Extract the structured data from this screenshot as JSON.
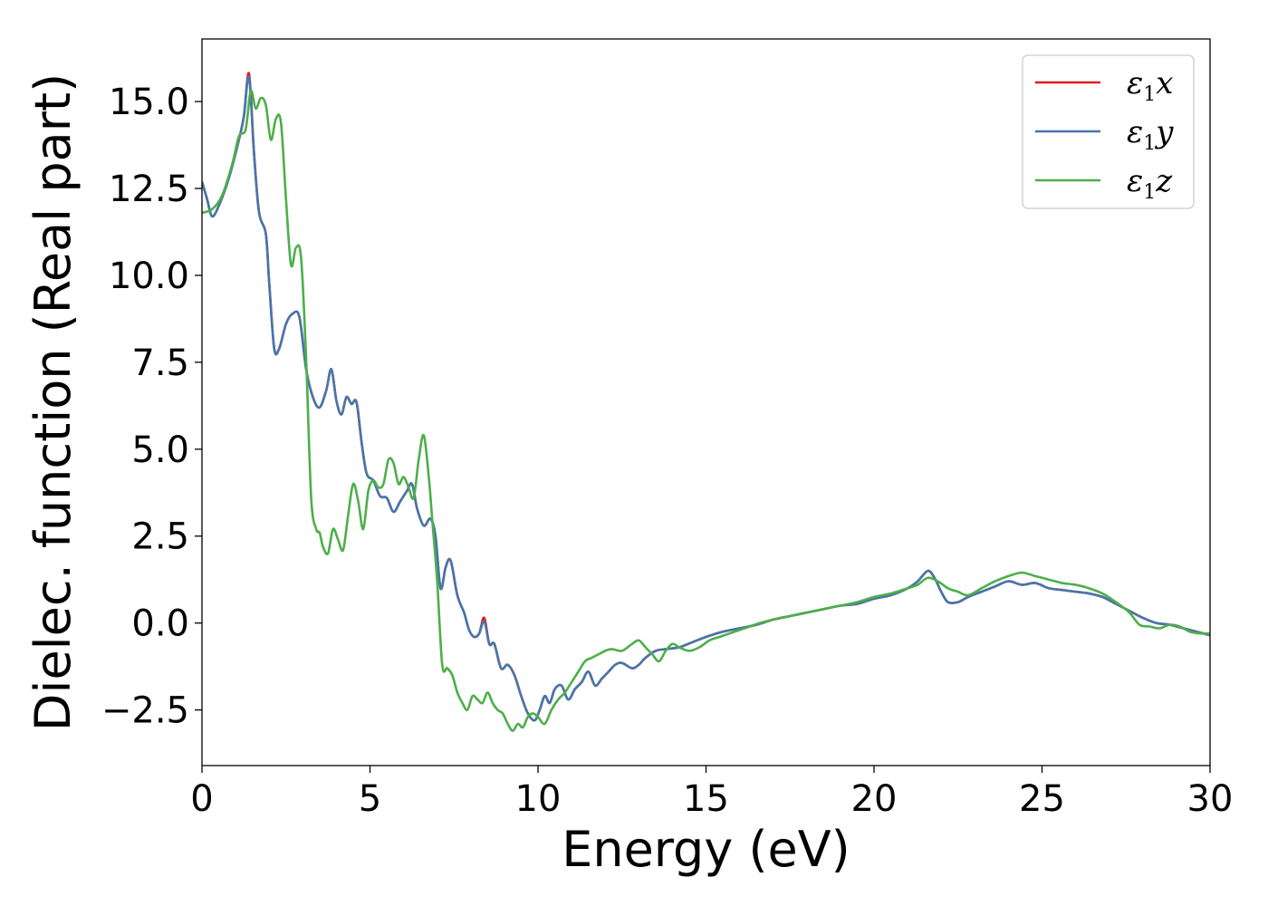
{
  "chart_data": {
    "type": "line",
    "title": "",
    "xlabel": "Energy (eV)",
    "ylabel": "Dielec. function (Real part)",
    "xlim": [
      0,
      30
    ],
    "ylim": [
      -4.1,
      16.8
    ],
    "x_ticks": [
      0,
      5,
      10,
      15,
      20,
      25,
      30
    ],
    "x_tick_labels": [
      "0",
      "5",
      "10",
      "15",
      "20",
      "25",
      "30"
    ],
    "y_ticks": [
      -2.5,
      0.0,
      2.5,
      5.0,
      7.5,
      10.0,
      12.5,
      15.0
    ],
    "y_tick_labels": [
      "−2.5",
      "0.0",
      "2.5",
      "5.0",
      "7.5",
      "10.0",
      "12.5",
      "15.0"
    ],
    "grid": false,
    "legend_position": "top-right",
    "series": [
      {
        "name": "ε",
        "sub": "1",
        "suffix": "x",
        "color": "#e41a1c",
        "x": [
          0,
          0.15,
          0.3,
          0.5,
          0.8,
          1.1,
          1.25,
          1.4,
          1.55,
          1.7,
          1.9,
          2.0,
          2.15,
          2.3,
          2.5,
          2.7,
          2.9,
          3.1,
          3.3,
          3.5,
          3.7,
          3.85,
          4.0,
          4.15,
          4.3,
          4.45,
          4.6,
          4.75,
          4.9,
          5.1,
          5.3,
          5.5,
          5.7,
          5.9,
          6.1,
          6.25,
          6.4,
          6.6,
          6.8,
          6.95,
          7.1,
          7.25,
          7.4,
          7.6,
          7.8,
          7.95,
          8.1,
          8.25,
          8.4,
          8.55,
          8.7,
          8.9,
          9.1,
          9.3,
          9.5,
          9.7,
          9.9,
          10.05,
          10.2,
          10.35,
          10.5,
          10.7,
          10.9,
          11.1,
          11.3,
          11.5,
          11.7,
          11.9,
          12.1,
          12.3,
          12.5,
          12.8,
          13.0,
          13.2,
          13.5,
          13.8,
          14.2,
          14.6,
          15.0,
          15.5,
          16.0,
          16.5,
          17.0,
          17.5,
          18.0,
          18.5,
          19.0,
          19.5,
          20.0,
          20.5,
          21.0,
          21.3,
          21.6,
          21.8,
          22.0,
          22.2,
          22.5,
          22.8,
          23.2,
          23.6,
          24.0,
          24.4,
          24.8,
          25.2,
          25.6,
          26.0,
          26.4,
          26.8,
          27.2,
          27.6,
          28.0,
          28.4,
          28.8,
          29.2,
          29.6,
          30.0
        ],
        "y": [
          12.7,
          12.2,
          11.7,
          12.0,
          12.8,
          13.9,
          14.6,
          15.8,
          13.5,
          11.8,
          11.2,
          9.8,
          7.9,
          7.9,
          8.6,
          8.9,
          8.8,
          7.3,
          6.5,
          6.2,
          6.7,
          7.3,
          6.4,
          6.0,
          6.5,
          6.3,
          6.35,
          5.2,
          4.3,
          4.1,
          3.65,
          3.6,
          3.2,
          3.5,
          3.8,
          4.0,
          3.3,
          2.8,
          3.0,
          2.5,
          1.0,
          1.6,
          1.8,
          0.8,
          0.3,
          -0.2,
          -0.4,
          -0.3,
          0.15,
          -0.6,
          -0.6,
          -1.3,
          -1.2,
          -1.5,
          -2.1,
          -2.6,
          -2.8,
          -2.5,
          -2.1,
          -2.3,
          -1.9,
          -1.8,
          -2.2,
          -1.9,
          -1.7,
          -1.4,
          -1.8,
          -1.6,
          -1.4,
          -1.2,
          -1.15,
          -1.3,
          -1.2,
          -1.0,
          -0.8,
          -0.75,
          -0.7,
          -0.55,
          -0.4,
          -0.25,
          -0.15,
          -0.05,
          0.1,
          0.2,
          0.3,
          0.4,
          0.5,
          0.55,
          0.7,
          0.8,
          1.0,
          1.2,
          1.5,
          1.3,
          0.9,
          0.6,
          0.6,
          0.75,
          0.9,
          1.05,
          1.2,
          1.1,
          1.15,
          1.0,
          0.95,
          0.9,
          0.85,
          0.75,
          0.55,
          0.35,
          0.15,
          0.0,
          -0.05,
          -0.15,
          -0.25,
          -0.35
        ]
      },
      {
        "name": "ε",
        "sub": "1",
        "suffix": "y",
        "color": "#4477aa",
        "x": [
          0,
          0.15,
          0.3,
          0.5,
          0.8,
          1.1,
          1.25,
          1.4,
          1.55,
          1.7,
          1.9,
          2.0,
          2.15,
          2.3,
          2.5,
          2.7,
          2.9,
          3.1,
          3.3,
          3.5,
          3.7,
          3.85,
          4.0,
          4.15,
          4.3,
          4.45,
          4.6,
          4.75,
          4.9,
          5.1,
          5.3,
          5.5,
          5.7,
          5.9,
          6.1,
          6.25,
          6.4,
          6.6,
          6.8,
          6.95,
          7.1,
          7.25,
          7.4,
          7.6,
          7.8,
          7.95,
          8.1,
          8.25,
          8.4,
          8.55,
          8.7,
          8.9,
          9.1,
          9.3,
          9.5,
          9.7,
          9.9,
          10.05,
          10.2,
          10.35,
          10.5,
          10.7,
          10.9,
          11.1,
          11.3,
          11.5,
          11.7,
          11.9,
          12.1,
          12.3,
          12.5,
          12.8,
          13.0,
          13.2,
          13.5,
          13.8,
          14.2,
          14.6,
          15.0,
          15.5,
          16.0,
          16.5,
          17.0,
          17.5,
          18.0,
          18.5,
          19.0,
          19.5,
          20.0,
          20.5,
          21.0,
          21.3,
          21.6,
          21.8,
          22.0,
          22.2,
          22.5,
          22.8,
          23.2,
          23.6,
          24.0,
          24.4,
          24.8,
          25.2,
          25.6,
          26.0,
          26.4,
          26.8,
          27.2,
          27.6,
          28.0,
          28.4,
          28.8,
          29.2,
          29.6,
          30.0
        ],
        "y": [
          12.7,
          12.2,
          11.7,
          12.0,
          12.8,
          13.9,
          14.6,
          15.7,
          13.5,
          11.8,
          11.2,
          9.8,
          7.9,
          7.9,
          8.6,
          8.9,
          8.8,
          7.3,
          6.5,
          6.2,
          6.7,
          7.3,
          6.4,
          6.0,
          6.5,
          6.3,
          6.35,
          5.2,
          4.3,
          4.1,
          3.65,
          3.6,
          3.2,
          3.5,
          3.8,
          4.0,
          3.3,
          2.8,
          3.0,
          2.5,
          1.0,
          1.6,
          1.8,
          0.8,
          0.3,
          -0.2,
          -0.4,
          -0.3,
          0.05,
          -0.6,
          -0.6,
          -1.3,
          -1.2,
          -1.5,
          -2.1,
          -2.6,
          -2.8,
          -2.5,
          -2.1,
          -2.3,
          -1.9,
          -1.8,
          -2.2,
          -1.9,
          -1.7,
          -1.4,
          -1.8,
          -1.6,
          -1.4,
          -1.2,
          -1.15,
          -1.3,
          -1.2,
          -1.0,
          -0.8,
          -0.75,
          -0.7,
          -0.55,
          -0.4,
          -0.25,
          -0.15,
          -0.05,
          0.1,
          0.2,
          0.3,
          0.4,
          0.5,
          0.55,
          0.7,
          0.8,
          1.0,
          1.2,
          1.5,
          1.3,
          0.9,
          0.6,
          0.6,
          0.75,
          0.9,
          1.05,
          1.2,
          1.1,
          1.15,
          1.0,
          0.95,
          0.9,
          0.85,
          0.75,
          0.55,
          0.35,
          0.15,
          0.0,
          -0.05,
          -0.15,
          -0.25,
          -0.35
        ]
      },
      {
        "name": "ε",
        "sub": "1",
        "suffix": "z",
        "color": "#4daf4a",
        "x": [
          0,
          0.3,
          0.6,
          0.9,
          1.1,
          1.3,
          1.45,
          1.6,
          1.75,
          1.9,
          2.05,
          2.2,
          2.35,
          2.5,
          2.65,
          2.8,
          2.95,
          3.1,
          3.25,
          3.4,
          3.5,
          3.6,
          3.75,
          3.9,
          4.05,
          4.2,
          4.35,
          4.5,
          4.65,
          4.8,
          4.95,
          5.1,
          5.25,
          5.4,
          5.55,
          5.7,
          5.85,
          6.0,
          6.15,
          6.3,
          6.45,
          6.6,
          6.75,
          6.85,
          7.0,
          7.15,
          7.3,
          7.45,
          7.6,
          7.75,
          7.9,
          8.05,
          8.2,
          8.35,
          8.5,
          8.65,
          8.8,
          8.95,
          9.1,
          9.25,
          9.4,
          9.55,
          9.7,
          9.85,
          10.0,
          10.2,
          10.4,
          10.6,
          10.8,
          11.0,
          11.2,
          11.4,
          11.6,
          11.8,
          12.0,
          12.2,
          12.5,
          12.8,
          13.0,
          13.2,
          13.4,
          13.6,
          13.8,
          14.0,
          14.2,
          14.5,
          14.8,
          15.1,
          15.4,
          15.7,
          16.0,
          16.3,
          16.6,
          17.0,
          17.5,
          18.0,
          18.5,
          19.0,
          19.5,
          20.0,
          20.5,
          21.0,
          21.3,
          21.6,
          21.9,
          22.2,
          22.5,
          22.8,
          23.2,
          23.6,
          24.0,
          24.4,
          24.8,
          25.2,
          25.6,
          26.0,
          26.4,
          26.8,
          27.2,
          27.6,
          27.9,
          28.2,
          28.5,
          28.8,
          29.1,
          29.4,
          29.7,
          30.0
        ],
        "y": [
          11.8,
          11.9,
          12.3,
          13.2,
          14.0,
          14.2,
          15.3,
          14.8,
          15.1,
          14.9,
          13.9,
          14.5,
          14.4,
          12.2,
          10.3,
          10.8,
          10.5,
          7.6,
          3.6,
          2.7,
          2.6,
          2.2,
          2.0,
          2.7,
          2.4,
          2.1,
          3.1,
          4.0,
          3.5,
          2.7,
          3.8,
          4.1,
          3.9,
          4.0,
          4.7,
          4.6,
          4.0,
          4.2,
          3.9,
          3.6,
          4.7,
          5.4,
          4.2,
          3.0,
          1.2,
          -1.2,
          -1.3,
          -1.5,
          -2.0,
          -2.3,
          -2.5,
          -2.1,
          -2.2,
          -2.3,
          -2.0,
          -2.3,
          -2.5,
          -2.6,
          -2.9,
          -3.1,
          -2.9,
          -3.0,
          -2.7,
          -2.6,
          -2.7,
          -2.9,
          -2.5,
          -2.2,
          -2.0,
          -1.7,
          -1.4,
          -1.1,
          -1.0,
          -0.9,
          -0.8,
          -0.75,
          -0.8,
          -0.6,
          -0.5,
          -0.7,
          -0.9,
          -1.1,
          -0.8,
          -0.6,
          -0.7,
          -0.8,
          -0.7,
          -0.5,
          -0.4,
          -0.3,
          -0.2,
          -0.1,
          0.0,
          0.1,
          0.2,
          0.3,
          0.4,
          0.5,
          0.6,
          0.75,
          0.85,
          1.0,
          1.1,
          1.3,
          1.2,
          1.0,
          0.9,
          0.8,
          1.0,
          1.2,
          1.35,
          1.45,
          1.35,
          1.25,
          1.15,
          1.1,
          1.0,
          0.85,
          0.6,
          0.3,
          -0.05,
          -0.1,
          -0.15,
          -0.05,
          -0.1,
          -0.25,
          -0.3,
          -0.3
        ]
      }
    ]
  }
}
